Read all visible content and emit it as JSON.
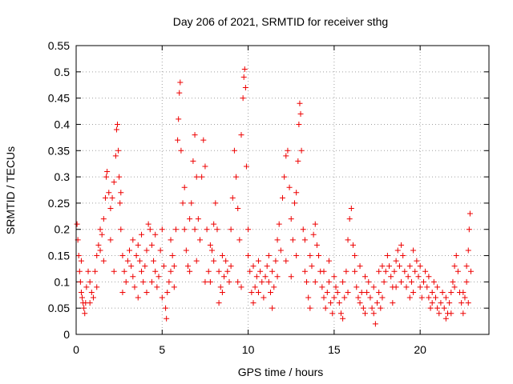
{
  "chart_data": {
    "type": "scatter",
    "title": "Day 206 of 2021, SRMTID for receiver sthg",
    "xlabel": "GPS time / hours",
    "ylabel": "SRMTID / TECUs",
    "xlim": [
      0,
      24
    ],
    "ylim": [
      0,
      0.55
    ],
    "xticks": [
      0,
      5,
      10,
      15,
      20
    ],
    "xtick_labels": [
      "0",
      "5",
      "10",
      "15",
      "20"
    ],
    "yticks": [
      0,
      0.05,
      0.1,
      0.15,
      0.2,
      0.25,
      0.3,
      0.35,
      0.4,
      0.45,
      0.5,
      0.55
    ],
    "ytick_labels": [
      "0",
      "0.05",
      "0.1",
      "0.15",
      "0.2",
      "0.25",
      "0.3",
      "0.35",
      "0.4",
      "0.45",
      "0.5",
      "0.55"
    ],
    "grid": true,
    "marker": "+",
    "marker_color": "#ee0000",
    "series": [
      {
        "name": "SRMTID",
        "points": [
          [
            0.05,
            0.21
          ],
          [
            0.1,
            0.18
          ],
          [
            0.15,
            0.15
          ],
          [
            0.2,
            0.12
          ],
          [
            0.25,
            0.1
          ],
          [
            0.3,
            0.08
          ],
          [
            0.35,
            0.07
          ],
          [
            0.4,
            0.06
          ],
          [
            0.45,
            0.05
          ],
          [
            0.5,
            0.04
          ],
          [
            0.55,
            0.06
          ],
          [
            0.6,
            0.09
          ],
          [
            0.7,
            0.12
          ],
          [
            0.8,
            0.1
          ],
          [
            0.9,
            0.08
          ],
          [
            1.0,
            0.07
          ],
          [
            1.1,
            0.12
          ],
          [
            1.2,
            0.15
          ],
          [
            1.3,
            0.17
          ],
          [
            1.4,
            0.16
          ],
          [
            1.5,
            0.19
          ],
          [
            1.6,
            0.22
          ],
          [
            1.7,
            0.26
          ],
          [
            1.75,
            0.3
          ],
          [
            1.8,
            0.31
          ],
          [
            1.9,
            0.27
          ],
          [
            2.0,
            0.24
          ],
          [
            2.1,
            0.26
          ],
          [
            2.2,
            0.29
          ],
          [
            2.3,
            0.34
          ],
          [
            2.35,
            0.39
          ],
          [
            2.4,
            0.4
          ],
          [
            2.45,
            0.35
          ],
          [
            2.5,
            0.3
          ],
          [
            2.55,
            0.25
          ],
          [
            2.6,
            0.2
          ],
          [
            2.7,
            0.15
          ],
          [
            2.8,
            0.12
          ],
          [
            2.9,
            0.1
          ],
          [
            3.0,
            0.14
          ],
          [
            3.1,
            0.16
          ],
          [
            3.2,
            0.13
          ],
          [
            3.3,
            0.11
          ],
          [
            3.4,
            0.09
          ],
          [
            3.5,
            0.15
          ],
          [
            3.6,
            0.17
          ],
          [
            3.7,
            0.14
          ],
          [
            3.8,
            0.12
          ],
          [
            3.9,
            0.1
          ],
          [
            4.0,
            0.13
          ],
          [
            4.1,
            0.16
          ],
          [
            4.2,
            0.21
          ],
          [
            4.3,
            0.2
          ],
          [
            4.4,
            0.17
          ],
          [
            4.5,
            0.14
          ],
          [
            4.6,
            0.12
          ],
          [
            4.7,
            0.09
          ],
          [
            4.8,
            0.11
          ],
          [
            4.9,
            0.16
          ],
          [
            5.0,
            0.2
          ],
          [
            5.1,
            0.13
          ],
          [
            5.2,
            0.05
          ],
          [
            5.25,
            0.03
          ],
          [
            5.3,
            0.08
          ],
          [
            5.4,
            0.1
          ],
          [
            5.5,
            0.12
          ],
          [
            5.6,
            0.15
          ],
          [
            5.7,
            0.13
          ],
          [
            5.8,
            0.2
          ],
          [
            5.9,
            0.37
          ],
          [
            5.95,
            0.41
          ],
          [
            6.0,
            0.46
          ],
          [
            6.05,
            0.48
          ],
          [
            6.1,
            0.35
          ],
          [
            6.2,
            0.25
          ],
          [
            6.3,
            0.2
          ],
          [
            6.4,
            0.16
          ],
          [
            6.5,
            0.13
          ],
          [
            6.6,
            0.12
          ],
          [
            6.7,
            0.25
          ],
          [
            6.8,
            0.33
          ],
          [
            6.9,
            0.38
          ],
          [
            7.0,
            0.3
          ],
          [
            7.1,
            0.22
          ],
          [
            7.2,
            0.18
          ],
          [
            7.3,
            0.3
          ],
          [
            7.4,
            0.37
          ],
          [
            7.5,
            0.32
          ],
          [
            7.6,
            0.2
          ],
          [
            7.7,
            0.12
          ],
          [
            7.8,
            0.1
          ],
          [
            7.9,
            0.16
          ],
          [
            8.0,
            0.14
          ],
          [
            8.1,
            0.25
          ],
          [
            8.2,
            0.2
          ],
          [
            8.3,
            0.12
          ],
          [
            8.4,
            0.09
          ],
          [
            8.5,
            0.08
          ],
          [
            8.6,
            0.11
          ],
          [
            8.7,
            0.14
          ],
          [
            8.8,
            0.12
          ],
          [
            8.9,
            0.1
          ],
          [
            9.0,
            0.2
          ],
          [
            9.1,
            0.26
          ],
          [
            9.2,
            0.35
          ],
          [
            9.3,
            0.3
          ],
          [
            9.4,
            0.24
          ],
          [
            9.5,
            0.18
          ],
          [
            9.6,
            0.38
          ],
          [
            9.7,
            0.45
          ],
          [
            9.75,
            0.49
          ],
          [
            9.8,
            0.505
          ],
          [
            9.85,
            0.47
          ],
          [
            9.9,
            0.32
          ],
          [
            10.0,
            0.2
          ],
          [
            10.1,
            0.12
          ],
          [
            10.2,
            0.08
          ],
          [
            10.3,
            0.06
          ],
          [
            10.4,
            0.09
          ],
          [
            10.5,
            0.11
          ],
          [
            10.6,
            0.08
          ],
          [
            10.7,
            0.12
          ],
          [
            10.8,
            0.1
          ],
          [
            10.9,
            0.07
          ],
          [
            11.0,
            0.11
          ],
          [
            11.1,
            0.13
          ],
          [
            11.2,
            0.1
          ],
          [
            11.3,
            0.08
          ],
          [
            11.4,
            0.05
          ],
          [
            11.5,
            0.09
          ],
          [
            11.6,
            0.14
          ],
          [
            11.7,
            0.18
          ],
          [
            11.8,
            0.21
          ],
          [
            11.9,
            0.16
          ],
          [
            12.0,
            0.26
          ],
          [
            12.1,
            0.3
          ],
          [
            12.2,
            0.34
          ],
          [
            12.3,
            0.35
          ],
          [
            12.4,
            0.28
          ],
          [
            12.5,
            0.22
          ],
          [
            12.6,
            0.18
          ],
          [
            12.7,
            0.25
          ],
          [
            12.8,
            0.27
          ],
          [
            12.9,
            0.33
          ],
          [
            12.95,
            0.4
          ],
          [
            13.0,
            0.44
          ],
          [
            13.05,
            0.42
          ],
          [
            13.1,
            0.35
          ],
          [
            13.2,
            0.2
          ],
          [
            13.3,
            0.12
          ],
          [
            13.4,
            0.1
          ],
          [
            13.5,
            0.07
          ],
          [
            13.6,
            0.05
          ],
          [
            13.7,
            0.13
          ],
          [
            13.8,
            0.19
          ],
          [
            13.9,
            0.21
          ],
          [
            14.0,
            0.17
          ],
          [
            14.1,
            0.15
          ],
          [
            14.2,
            0.12
          ],
          [
            14.3,
            0.09
          ],
          [
            14.4,
            0.07
          ],
          [
            14.5,
            0.05
          ],
          [
            14.6,
            0.08
          ],
          [
            14.7,
            0.1
          ],
          [
            14.8,
            0.06
          ],
          [
            14.9,
            0.04
          ],
          [
            15.0,
            0.07
          ],
          [
            15.1,
            0.09
          ],
          [
            15.2,
            0.08
          ],
          [
            15.3,
            0.06
          ],
          [
            15.4,
            0.04
          ],
          [
            15.5,
            0.03
          ],
          [
            15.6,
            0.07
          ],
          [
            15.7,
            0.12
          ],
          [
            15.8,
            0.18
          ],
          [
            15.9,
            0.22
          ],
          [
            16.0,
            0.24
          ],
          [
            16.1,
            0.17
          ],
          [
            16.2,
            0.12
          ],
          [
            16.3,
            0.09
          ],
          [
            16.4,
            0.07
          ],
          [
            16.5,
            0.06
          ],
          [
            16.6,
            0.08
          ],
          [
            16.7,
            0.05
          ],
          [
            16.8,
            0.04
          ],
          [
            16.9,
            0.08
          ],
          [
            17.0,
            0.1
          ],
          [
            17.1,
            0.07
          ],
          [
            17.2,
            0.05
          ],
          [
            17.3,
            0.04
          ],
          [
            17.4,
            0.02
          ],
          [
            17.5,
            0.06
          ],
          [
            17.6,
            0.08
          ],
          [
            17.7,
            0.05
          ],
          [
            17.8,
            0.07
          ],
          [
            17.9,
            0.1
          ],
          [
            18.0,
            0.12
          ],
          [
            18.1,
            0.15
          ],
          [
            18.2,
            0.13
          ],
          [
            18.3,
            0.11
          ],
          [
            18.4,
            0.09
          ],
          [
            18.5,
            0.12
          ],
          [
            18.6,
            0.14
          ],
          [
            18.7,
            0.16
          ],
          [
            18.8,
            0.13
          ],
          [
            18.9,
            0.1
          ],
          [
            19.0,
            0.15
          ],
          [
            19.1,
            0.12
          ],
          [
            19.2,
            0.09
          ],
          [
            19.3,
            0.11
          ],
          [
            19.4,
            0.13
          ],
          [
            19.5,
            0.1
          ],
          [
            19.6,
            0.08
          ],
          [
            19.7,
            0.12
          ],
          [
            19.8,
            0.14
          ],
          [
            19.9,
            0.11
          ],
          [
            20.0,
            0.09
          ],
          [
            20.1,
            0.07
          ],
          [
            20.2,
            0.1
          ],
          [
            20.3,
            0.12
          ],
          [
            20.4,
            0.09
          ],
          [
            20.5,
            0.07
          ],
          [
            20.6,
            0.05
          ],
          [
            20.7,
            0.08
          ],
          [
            20.8,
            0.1
          ],
          [
            20.9,
            0.07
          ],
          [
            21.0,
            0.05
          ],
          [
            21.1,
            0.04
          ],
          [
            21.2,
            0.06
          ],
          [
            21.3,
            0.08
          ],
          [
            21.4,
            0.05
          ],
          [
            21.5,
            0.03
          ],
          [
            21.6,
            0.04
          ],
          [
            21.7,
            0.06
          ],
          [
            21.8,
            0.08
          ],
          [
            21.9,
            0.1
          ],
          [
            22.0,
            0.13
          ],
          [
            22.1,
            0.15
          ],
          [
            22.2,
            0.12
          ],
          [
            22.3,
            0.08
          ],
          [
            22.4,
            0.06
          ],
          [
            22.5,
            0.04
          ],
          [
            22.6,
            0.07
          ],
          [
            22.7,
            0.1
          ],
          [
            22.8,
            0.16
          ],
          [
            22.85,
            0.2
          ],
          [
            22.9,
            0.23
          ],
          [
            22.95,
            0.12
          ],
          [
            0.3,
            0.14
          ],
          [
            0.8,
            0.06
          ],
          [
            1.2,
            0.09
          ],
          [
            1.6,
            0.14
          ],
          [
            2.0,
            0.18
          ],
          [
            2.2,
            0.12
          ],
          [
            2.7,
            0.08
          ],
          [
            3.3,
            0.18
          ],
          [
            3.8,
            0.19
          ],
          [
            4.1,
            0.08
          ],
          [
            4.6,
            0.19
          ],
          [
            5.0,
            0.07
          ],
          [
            5.5,
            0.18
          ],
          [
            6.3,
            0.28
          ],
          [
            6.6,
            0.22
          ],
          [
            7.0,
            0.14
          ],
          [
            7.5,
            0.1
          ],
          [
            8.0,
            0.21
          ],
          [
            8.5,
            0.15
          ],
          [
            9.0,
            0.13
          ],
          [
            9.4,
            0.1
          ],
          [
            10.0,
            0.15
          ],
          [
            10.6,
            0.14
          ],
          [
            11.2,
            0.15
          ],
          [
            11.7,
            0.11
          ],
          [
            12.2,
            0.14
          ],
          [
            12.8,
            0.15
          ],
          [
            13.3,
            0.18
          ],
          [
            13.9,
            0.1
          ],
          [
            14.4,
            0.12
          ],
          [
            15.0,
            0.11
          ],
          [
            15.5,
            0.1
          ],
          [
            16.2,
            0.15
          ],
          [
            16.8,
            0.11
          ],
          [
            17.3,
            0.09
          ],
          [
            17.8,
            0.13
          ],
          [
            18.4,
            0.06
          ],
          [
            18.9,
            0.17
          ],
          [
            19.4,
            0.07
          ],
          [
            20.0,
            0.13
          ],
          [
            20.5,
            0.11
          ],
          [
            21.0,
            0.09
          ],
          [
            21.5,
            0.07
          ],
          [
            22.0,
            0.09
          ],
          [
            22.5,
            0.08
          ],
          [
            22.8,
            0.06
          ],
          [
            1.4,
            0.2
          ],
          [
            2.6,
            0.27
          ],
          [
            3.6,
            0.07
          ],
          [
            4.4,
            0.1
          ],
          [
            5.7,
            0.09
          ],
          [
            6.9,
            0.2
          ],
          [
            7.8,
            0.17
          ],
          [
            8.3,
            0.06
          ],
          [
            9.6,
            0.09
          ],
          [
            10.3,
            0.13
          ],
          [
            11.4,
            0.12
          ],
          [
            12.5,
            0.11
          ],
          [
            13.6,
            0.15
          ],
          [
            14.7,
            0.14
          ],
          [
            15.8,
            0.08
          ],
          [
            16.5,
            0.13
          ],
          [
            17.6,
            0.12
          ],
          [
            18.6,
            0.09
          ],
          [
            19.6,
            0.16
          ],
          [
            20.7,
            0.06
          ],
          [
            21.8,
            0.04
          ],
          [
            22.7,
            0.13
          ]
        ]
      }
    ]
  }
}
